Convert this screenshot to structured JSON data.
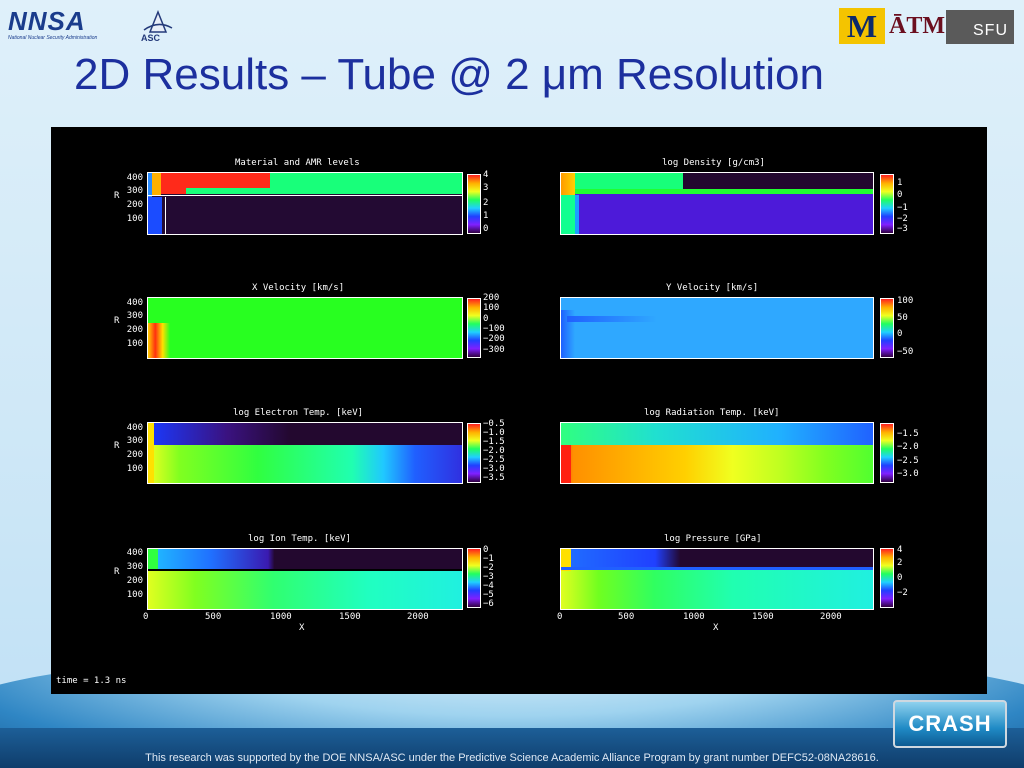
{
  "slide": {
    "title": "2D Results – Tube @ 2 μm Resolution",
    "footer": "This research was supported by the DOE NNSA/ASC under the Predictive Science Academic Alliance Program by grant number DEFC52-08NA28616.",
    "time_label": "time =  1.3 ns"
  },
  "logos": {
    "nnsa": "NNSA",
    "nnsa_sub": "National Nuclear Security Administration",
    "asc": "ASC",
    "umich": "M",
    "tamu": "ĀTM",
    "sfu": "SFU",
    "crash": "CRASH"
  },
  "axes": {
    "y_label": "R",
    "y_ticks": [
      "400",
      "300",
      "200",
      "100"
    ],
    "x_label": "X",
    "x_ticks": [
      "0",
      "500",
      "1000",
      "1500",
      "2000"
    ]
  },
  "plots": [
    {
      "title": "Material and AMR levels",
      "cbar_ticks": [
        "4",
        "3",
        "2",
        "1",
        "0"
      ]
    },
    {
      "title": "log Density [g/cm3]",
      "cbar_ticks": [
        "1",
        "0",
        "−1",
        "−2",
        "−3"
      ]
    },
    {
      "title": "X Velocity [km/s]",
      "cbar_ticks": [
        "200",
        "100",
        "0",
        "−100",
        "−200",
        "−300"
      ]
    },
    {
      "title": "Y Velocity [km/s]",
      "cbar_ticks": [
        "100",
        "50",
        "0",
        "−50"
      ]
    },
    {
      "title": "log Electron Temp. [keV]",
      "cbar_ticks": [
        "−0.5",
        "−1.0",
        "−1.5",
        "−2.0",
        "−2.5",
        "−3.0",
        "−3.5"
      ]
    },
    {
      "title": "log Radiation Temp. [keV]",
      "cbar_ticks": [
        "−1.5",
        "−2.0",
        "−2.5",
        "−3.0"
      ]
    },
    {
      "title": "log Ion Temp. [keV]",
      "cbar_ticks": [
        "0",
        "−1",
        "−2",
        "−3",
        "−4",
        "−5",
        "−6"
      ]
    },
    {
      "title": "log Pressure [GPa]",
      "cbar_ticks": [
        "4",
        "2",
        "0",
        "−2"
      ]
    }
  ]
}
